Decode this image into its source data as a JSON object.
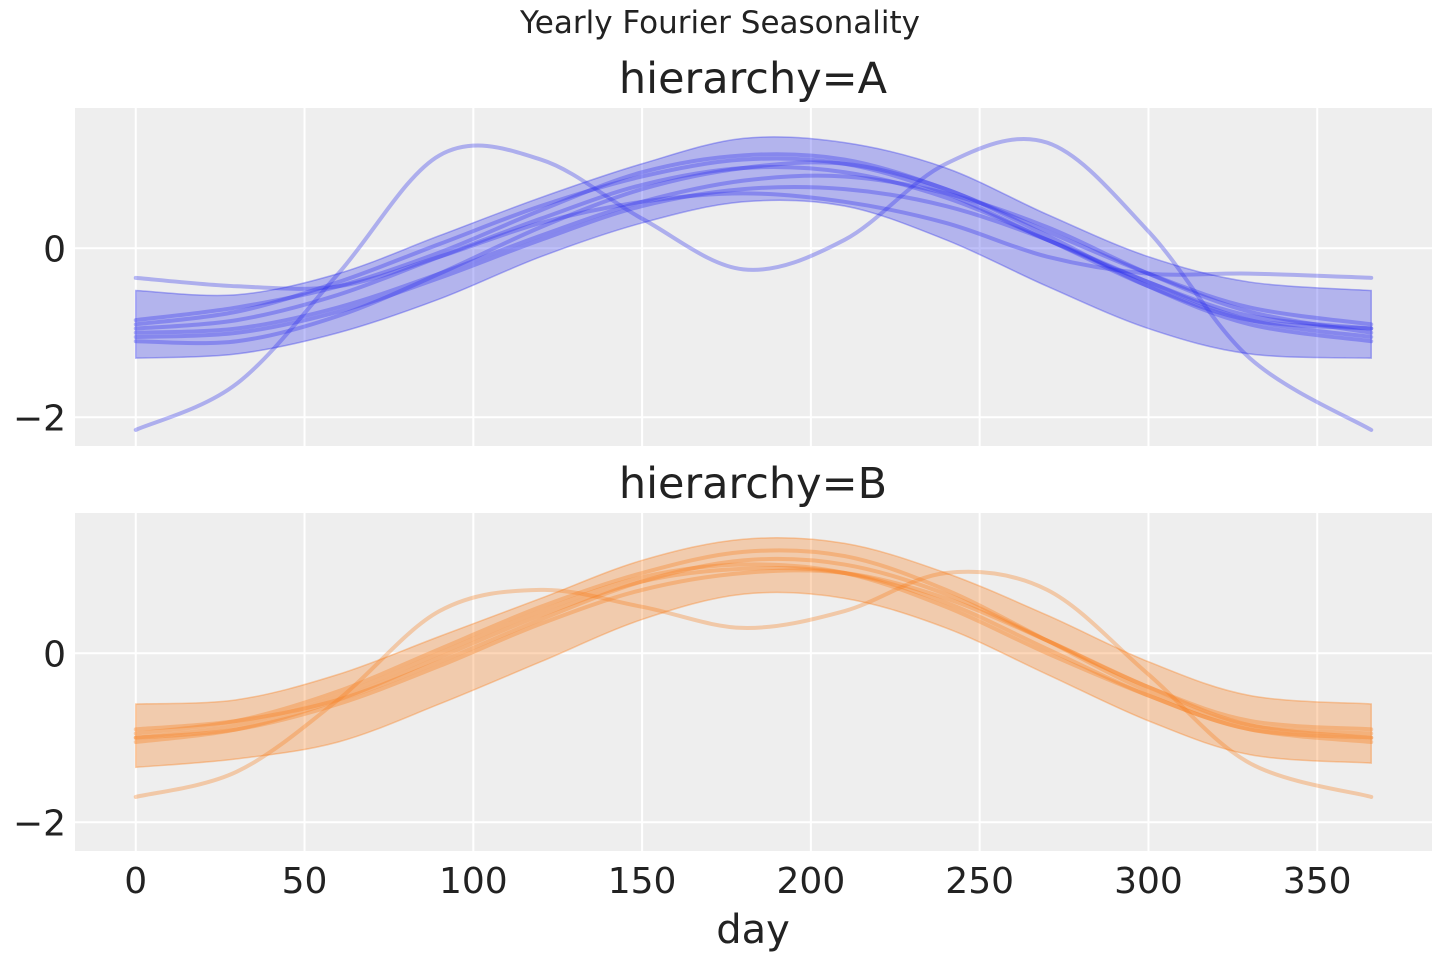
{
  "chart_data": {
    "type": "line",
    "title": "Yearly Fourier Seasonality",
    "xlabel": "day",
    "xlim": [
      -18,
      384
    ],
    "xticks": [
      0,
      50,
      100,
      150,
      200,
      250,
      300,
      350
    ],
    "xtick_labels": [
      "0",
      "50",
      "100",
      "150",
      "200",
      "250",
      "300",
      "350"
    ],
    "grid": true,
    "x": [
      0,
      30,
      60,
      90,
      120,
      150,
      180,
      210,
      240,
      270,
      300,
      330,
      366
    ],
    "panels": [
      {
        "title": "hierarchy=A",
        "color": "#2a2eec",
        "ylim": [
          -2.34,
          1.66
        ],
        "yticks": [
          0,
          -2
        ],
        "ytick_labels": [
          "0",
          "−2"
        ],
        "band_upper": [
          -0.5,
          -0.55,
          -0.3,
          0.15,
          0.6,
          1.0,
          1.3,
          1.25,
          0.95,
          0.4,
          -0.1,
          -0.4,
          -0.5
        ],
        "band_lower": [
          -1.3,
          -1.25,
          -1.0,
          -0.6,
          -0.1,
          0.3,
          0.55,
          0.5,
          0.1,
          -0.45,
          -0.95,
          -1.25,
          -1.3
        ],
        "series": [
          [
            -2.15,
            -1.6,
            -0.3,
            1.1,
            1.05,
            0.35,
            -0.25,
            0.1,
            1.0,
            1.25,
            0.2,
            -1.3,
            -2.15
          ],
          [
            -0.35,
            -0.45,
            -0.45,
            -0.1,
            0.3,
            0.55,
            0.65,
            0.55,
            0.3,
            -0.1,
            -0.3,
            -0.3,
            -0.35
          ],
          [
            -0.95,
            -0.85,
            -0.55,
            -0.1,
            0.35,
            0.75,
            0.95,
            0.9,
            0.6,
            0.1,
            -0.45,
            -0.85,
            -0.95
          ],
          [
            -1.1,
            -1.1,
            -0.8,
            -0.3,
            0.25,
            0.7,
            0.95,
            1.0,
            0.7,
            0.15,
            -0.45,
            -0.9,
            -1.1
          ],
          [
            -0.9,
            -0.75,
            -0.4,
            0.05,
            0.5,
            0.85,
            1.05,
            1.0,
            0.65,
            0.1,
            -0.4,
            -0.8,
            -0.95
          ],
          [
            -1.0,
            -0.95,
            -0.7,
            -0.3,
            0.15,
            0.55,
            0.8,
            0.85,
            0.65,
            0.25,
            -0.3,
            -0.75,
            -1.0
          ],
          [
            -1.05,
            -1.0,
            -0.75,
            -0.35,
            0.1,
            0.5,
            0.7,
            0.7,
            0.5,
            0.1,
            -0.4,
            -0.85,
            -1.05
          ],
          [
            -0.85,
            -0.7,
            -0.45,
            -0.05,
            0.45,
            0.9,
            1.1,
            1.05,
            0.7,
            0.2,
            -0.3,
            -0.7,
            -0.9
          ]
        ]
      },
      {
        "title": "hierarchy=B",
        "color": "#fa7c17",
        "ylim": [
          -2.34,
          1.66
        ],
        "yticks": [
          0,
          -2
        ],
        "ytick_labels": [
          "0",
          "−2"
        ],
        "band_upper": [
          -0.6,
          -0.55,
          -0.25,
          0.2,
          0.65,
          1.1,
          1.35,
          1.3,
          0.95,
          0.45,
          -0.1,
          -0.5,
          -0.6
        ],
        "band_lower": [
          -1.35,
          -1.25,
          -1.05,
          -0.6,
          -0.1,
          0.4,
          0.7,
          0.65,
          0.3,
          -0.25,
          -0.8,
          -1.2,
          -1.3
        ],
        "series": [
          [
            -1.7,
            -1.4,
            -0.55,
            0.5,
            0.75,
            0.55,
            0.3,
            0.5,
            0.95,
            0.75,
            -0.25,
            -1.3,
            -1.7
          ],
          [
            -1.0,
            -0.85,
            -0.5,
            0.0,
            0.5,
            0.9,
            1.05,
            0.95,
            0.55,
            0.0,
            -0.5,
            -0.9,
            -1.0
          ],
          [
            -1.05,
            -0.9,
            -0.55,
            -0.05,
            0.45,
            0.85,
            1.0,
            0.95,
            0.6,
            0.05,
            -0.5,
            -0.9,
            -1.05
          ],
          [
            -0.9,
            -0.8,
            -0.55,
            -0.1,
            0.4,
            0.85,
            1.1,
            1.05,
            0.7,
            0.15,
            -0.4,
            -0.8,
            -0.9
          ],
          [
            -0.95,
            -0.8,
            -0.45,
            0.05,
            0.55,
            0.95,
            1.2,
            1.15,
            0.75,
            0.15,
            -0.45,
            -0.85,
            -0.95
          ],
          [
            -1.0,
            -0.9,
            -0.6,
            -0.15,
            0.35,
            0.75,
            0.95,
            0.95,
            0.65,
            0.15,
            -0.4,
            -0.85,
            -1.0
          ]
        ]
      }
    ]
  }
}
